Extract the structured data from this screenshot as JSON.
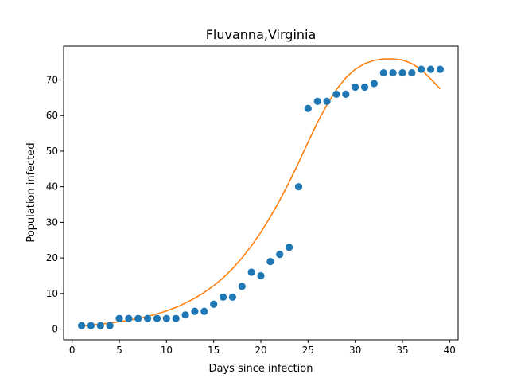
{
  "chart_data": {
    "type": "scatter",
    "title": "Fluvanna,Virginia",
    "xlabel": "Days since infection",
    "ylabel": "Population infected",
    "xlim": [
      -0.9,
      40.9
    ],
    "ylim": [
      -3.0,
      79.5
    ],
    "xticks": [
      0,
      5,
      10,
      15,
      20,
      25,
      30,
      35,
      40
    ],
    "yticks": [
      0,
      10,
      20,
      30,
      40,
      50,
      60,
      70
    ],
    "grid": false,
    "series": [
      {
        "kind": "scatter",
        "color": "#1f77b4",
        "x": [
          1,
          2,
          3,
          4,
          5,
          6,
          7,
          8,
          9,
          10,
          11,
          12,
          13,
          14,
          15,
          16,
          17,
          18,
          19,
          20,
          21,
          22,
          23,
          24,
          25,
          26,
          27,
          28,
          29,
          30,
          31,
          32,
          33,
          34,
          35,
          36,
          37,
          38,
          39
        ],
        "y": [
          1,
          1,
          1,
          1,
          3,
          3,
          3,
          3,
          3,
          3,
          3,
          4,
          5,
          5,
          7,
          9,
          9,
          12,
          16,
          15,
          19,
          21,
          23,
          40,
          62,
          64,
          64,
          66,
          66,
          68,
          68,
          69,
          72,
          72,
          72,
          72,
          73,
          73,
          73
        ]
      },
      {
        "kind": "line",
        "color": "#ff7f0e",
        "x": [
          1,
          2,
          3,
          4,
          5,
          6,
          7,
          8,
          9,
          10,
          11,
          12,
          13,
          14,
          15,
          16,
          17,
          18,
          19,
          20,
          21,
          22,
          23,
          24,
          25,
          26,
          27,
          28,
          29,
          30,
          31,
          32,
          33,
          34,
          35,
          36,
          37,
          38,
          39
        ],
        "y": [
          0.8,
          1.1,
          1.4,
          1.7,
          2.1,
          2.5,
          3.0,
          3.6,
          4.3,
          5.1,
          6.1,
          7.3,
          8.7,
          10.3,
          12.2,
          14.4,
          17.0,
          20.0,
          23.4,
          27.2,
          31.5,
          36.2,
          41.3,
          46.8,
          52.5,
          58.1,
          63.0,
          67.3,
          70.6,
          73.0,
          74.6,
          75.5,
          75.9,
          75.9,
          75.6,
          74.6,
          72.9,
          70.3,
          67.5
        ]
      }
    ]
  }
}
